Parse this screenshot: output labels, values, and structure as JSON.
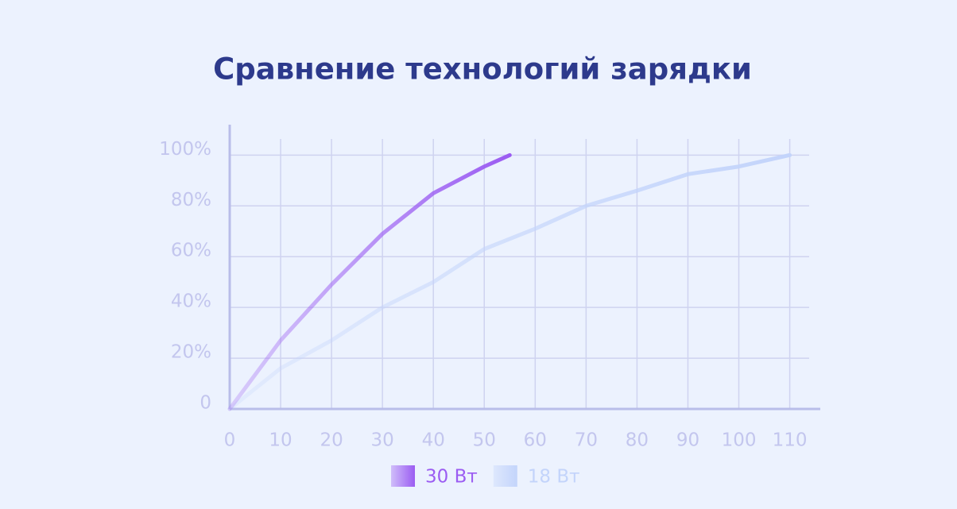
{
  "chart_data": {
    "type": "line",
    "title": "Сравнение технологий зарядки",
    "xlim": [
      0,
      116
    ],
    "xticks": [
      0,
      10,
      20,
      30,
      40,
      50,
      60,
      70,
      80,
      90,
      100,
      110
    ],
    "ylim": [
      0,
      112
    ],
    "yticks": [
      0,
      {
        "value": 20,
        "label": "20%"
      },
      {
        "value": 40,
        "label": "40%"
      },
      {
        "value": 60,
        "label": "60%"
      },
      {
        "value": 80,
        "label": "80%"
      },
      {
        "value": 100,
        "label": "100%"
      }
    ],
    "grid": true,
    "legend": "bottom",
    "series": [
      {
        "name": "30 Вт",
        "color": "#9b5cf2",
        "x": [
          0,
          10,
          20,
          30,
          40,
          50,
          55
        ],
        "values": [
          0,
          27,
          49,
          69,
          85,
          95.5,
          100
        ]
      },
      {
        "name": "18 Вт",
        "color": "#c3d4fb",
        "x": [
          0,
          10,
          20,
          30,
          40,
          50,
          60,
          70,
          80,
          90,
          100,
          110
        ],
        "values": [
          0,
          16,
          27,
          40,
          50,
          63,
          71,
          80,
          86,
          92.5,
          95.5,
          100
        ]
      }
    ]
  }
}
